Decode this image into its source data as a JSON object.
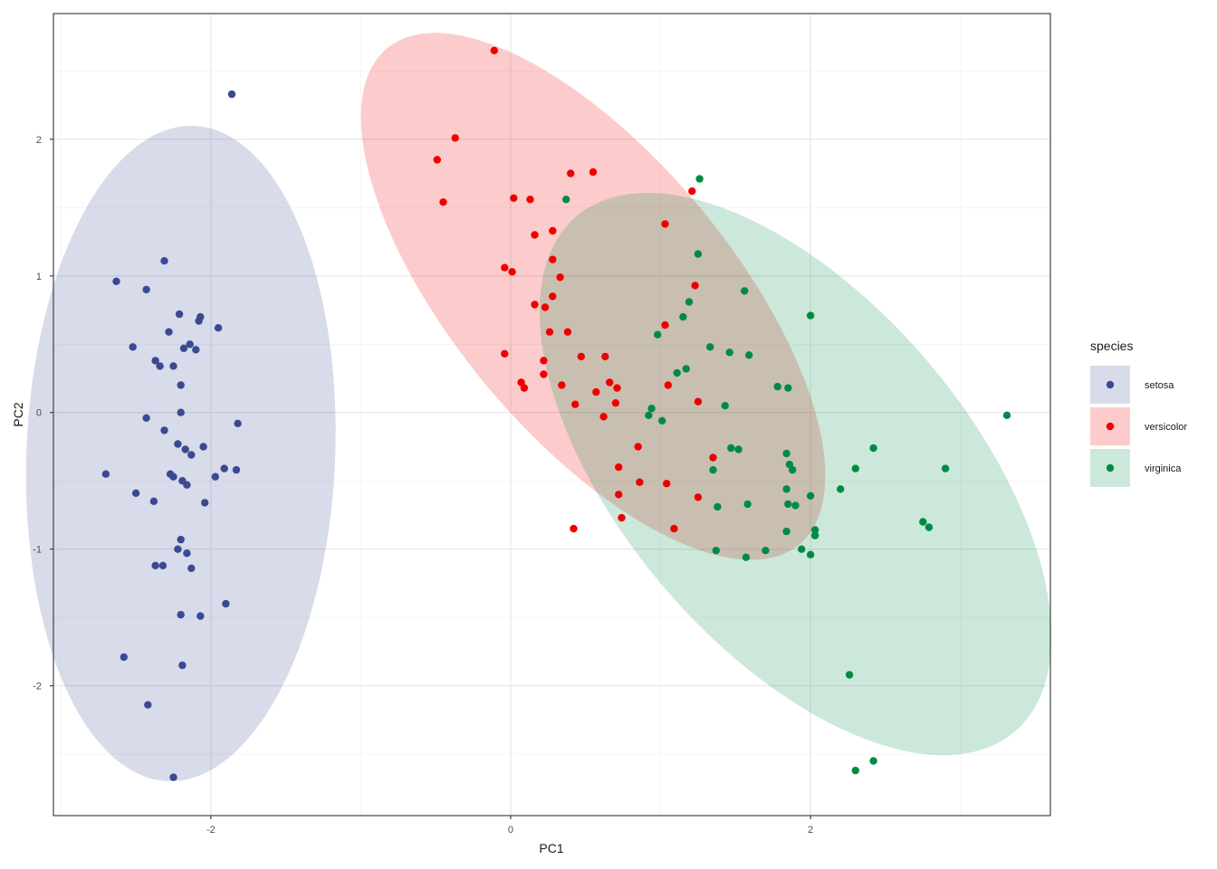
{
  "chart_data": {
    "type": "scatter",
    "title": "",
    "xlabel": "PC1",
    "ylabel": "PC2",
    "xlim": [
      -3.05,
      3.6
    ],
    "ylim": [
      -2.95,
      2.92
    ],
    "x_ticks": [
      -2,
      0,
      2
    ],
    "y_ticks": [
      -2,
      -1,
      0,
      1,
      2
    ],
    "x_tick_labels": [
      "-2",
      "0",
      "2"
    ],
    "y_tick_labels": [
      "-2",
      "-1",
      "0",
      "1",
      "2"
    ],
    "grid": true,
    "legend": {
      "title": "species",
      "position": "right"
    },
    "series": [
      {
        "name": "setosa",
        "color": "#3b4992",
        "ellipse_fill": "#3b4992",
        "ellipse": {
          "cx": -2.2,
          "cy": -0.3,
          "a": 2.4,
          "b": 1.03,
          "angle_deg": 88
        },
        "points": [
          [
            -2.7,
            -0.45
          ],
          [
            -2.63,
            0.96
          ],
          [
            -2.58,
            -1.79
          ],
          [
            -2.52,
            0.48
          ],
          [
            -2.5,
            -0.59
          ],
          [
            -2.43,
            0.9
          ],
          [
            -2.43,
            -0.04
          ],
          [
            -2.42,
            -2.14
          ],
          [
            -2.38,
            -0.65
          ],
          [
            -2.37,
            0.38
          ],
          [
            -2.37,
            -1.12
          ],
          [
            -2.34,
            0.34
          ],
          [
            -2.32,
            -1.12
          ],
          [
            -2.31,
            1.11
          ],
          [
            -2.31,
            -0.13
          ],
          [
            -2.28,
            0.59
          ],
          [
            -2.27,
            -0.45
          ],
          [
            -2.25,
            0.34
          ],
          [
            -2.25,
            -0.47
          ],
          [
            -2.25,
            -2.67
          ],
          [
            -2.22,
            -0.23
          ],
          [
            -2.22,
            -1.0
          ],
          [
            -2.21,
            0.72
          ],
          [
            -2.2,
            0.2
          ],
          [
            -2.2,
            -1.48
          ],
          [
            -2.2,
            -0.93
          ],
          [
            -2.2,
            0.0
          ],
          [
            -2.19,
            -1.85
          ],
          [
            -2.19,
            -0.5
          ],
          [
            -2.18,
            0.47
          ],
          [
            -2.17,
            -0.27
          ],
          [
            -2.16,
            -0.53
          ],
          [
            -2.16,
            -1.03
          ],
          [
            -2.14,
            0.5
          ],
          [
            -2.13,
            -0.31
          ],
          [
            -2.13,
            -1.14
          ],
          [
            -2.1,
            0.46
          ],
          [
            -2.08,
            0.67
          ],
          [
            -2.07,
            0.7
          ],
          [
            -2.07,
            -1.49
          ],
          [
            -2.05,
            -0.25
          ],
          [
            -2.04,
            -0.66
          ],
          [
            -1.97,
            -0.47
          ],
          [
            -1.95,
            0.62
          ],
          [
            -1.91,
            -0.41
          ],
          [
            -1.9,
            -1.4
          ],
          [
            -1.86,
            2.33
          ],
          [
            -1.83,
            -0.42
          ],
          [
            -1.82,
            -0.08
          ]
        ]
      },
      {
        "name": "versicolor",
        "color": "#ee0000",
        "ellipse_fill": "#ee0000",
        "ellipse": {
          "cx": 0.55,
          "cy": 0.85,
          "a": 2.28,
          "b": 0.96,
          "angle_deg": -54
        },
        "points": [
          [
            -0.11,
            2.65
          ],
          [
            -0.37,
            2.01
          ],
          [
            -0.49,
            1.85
          ],
          [
            -0.45,
            1.54
          ],
          [
            0.02,
            1.57
          ],
          [
            0.13,
            1.56
          ],
          [
            0.4,
            1.75
          ],
          [
            0.55,
            1.76
          ],
          [
            0.16,
            1.3
          ],
          [
            0.28,
            1.33
          ],
          [
            -0.04,
            1.06
          ],
          [
            0.01,
            1.03
          ],
          [
            0.28,
            1.12
          ],
          [
            0.33,
            0.99
          ],
          [
            0.28,
            0.85
          ],
          [
            0.16,
            0.79
          ],
          [
            0.23,
            0.77
          ],
          [
            0.26,
            0.59
          ],
          [
            0.38,
            0.59
          ],
          [
            -0.04,
            0.43
          ],
          [
            0.22,
            0.38
          ],
          [
            0.47,
            0.41
          ],
          [
            0.63,
            0.41
          ],
          [
            0.07,
            0.22
          ],
          [
            0.09,
            0.18
          ],
          [
            0.34,
            0.2
          ],
          [
            0.22,
            0.28
          ],
          [
            0.43,
            0.06
          ],
          [
            0.57,
            0.15
          ],
          [
            0.66,
            0.22
          ],
          [
            0.71,
            0.18
          ],
          [
            0.7,
            0.07
          ],
          [
            0.62,
            -0.03
          ],
          [
            0.85,
            -0.25
          ],
          [
            0.72,
            -0.4
          ],
          [
            0.86,
            -0.51
          ],
          [
            0.72,
            -0.6
          ],
          [
            0.74,
            -0.77
          ],
          [
            0.42,
            -0.85
          ],
          [
            1.04,
            -0.52
          ],
          [
            1.09,
            -0.85
          ],
          [
            1.25,
            -0.62
          ],
          [
            1.35,
            -0.33
          ],
          [
            1.25,
            0.08
          ],
          [
            1.03,
            0.64
          ],
          [
            1.23,
            0.93
          ],
          [
            1.03,
            1.38
          ],
          [
            1.21,
            1.62
          ],
          [
            1.05,
            0.2
          ]
        ]
      },
      {
        "name": "virginica",
        "color": "#008b45",
        "ellipse_fill": "#008b45",
        "ellipse": {
          "cx": 1.9,
          "cy": -0.45,
          "a": 2.39,
          "b": 1.2,
          "angle_deg": -54
        },
        "points": [
          [
            0.37,
            1.56
          ],
          [
            1.26,
            1.71
          ],
          [
            1.25,
            1.16
          ],
          [
            1.56,
            0.89
          ],
          [
            2.0,
            0.71
          ],
          [
            1.19,
            0.81
          ],
          [
            1.15,
            0.7
          ],
          [
            0.98,
            0.57
          ],
          [
            1.33,
            0.48
          ],
          [
            1.46,
            0.44
          ],
          [
            1.59,
            0.42
          ],
          [
            1.11,
            0.29
          ],
          [
            1.17,
            0.32
          ],
          [
            1.78,
            0.19
          ],
          [
            1.85,
            0.18
          ],
          [
            1.43,
            0.05
          ],
          [
            0.94,
            0.03
          ],
          [
            0.92,
            -0.02
          ],
          [
            1.01,
            -0.06
          ],
          [
            1.47,
            -0.26
          ],
          [
            1.52,
            -0.27
          ],
          [
            1.84,
            -0.3
          ],
          [
            1.86,
            -0.38
          ],
          [
            1.88,
            -0.42
          ],
          [
            1.35,
            -0.42
          ],
          [
            1.38,
            -0.69
          ],
          [
            1.58,
            -0.67
          ],
          [
            1.84,
            -0.56
          ],
          [
            1.85,
            -0.67
          ],
          [
            1.9,
            -0.68
          ],
          [
            2.0,
            -0.61
          ],
          [
            1.84,
            -0.87
          ],
          [
            2.03,
            -0.86
          ],
          [
            2.03,
            -0.9
          ],
          [
            1.94,
            -1.0
          ],
          [
            2.0,
            -1.04
          ],
          [
            1.7,
            -1.01
          ],
          [
            1.37,
            -1.01
          ],
          [
            1.57,
            -1.06
          ],
          [
            2.2,
            -0.56
          ],
          [
            2.3,
            -0.41
          ],
          [
            2.42,
            -0.26
          ],
          [
            2.9,
            -0.41
          ],
          [
            2.75,
            -0.8
          ],
          [
            2.79,
            -0.84
          ],
          [
            2.26,
            -1.92
          ],
          [
            2.42,
            -2.55
          ],
          [
            2.3,
            -2.62
          ],
          [
            3.31,
            -0.02
          ]
        ]
      }
    ]
  }
}
